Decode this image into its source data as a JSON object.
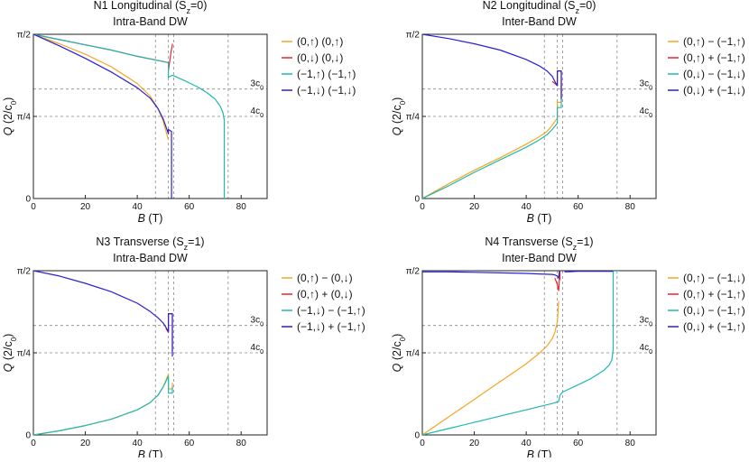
{
  "figure": {
    "panels_count": 4
  },
  "chart_data": [
    {
      "type": "line",
      "title": "N1 Longitudinal (S",
      "title_sub": "z",
      "title_tail": "=0)",
      "subtitle": "Intra-Band DW",
      "xlabel": "B (T)",
      "xlabel_main": "B",
      "xlabel_unit": " (T)",
      "ylabel_main": "Q",
      "ylabel_unit": " (2/c",
      "ylabel_sub": "0",
      "ylabel_tail": ")",
      "xlim": [
        0,
        90
      ],
      "ylim": [
        0,
        1.5708
      ],
      "xticks": [
        0,
        20,
        40,
        60,
        80
      ],
      "yticks": [
        {
          "v": 0,
          "label": "0"
        },
        {
          "v": 0.7854,
          "label": "π/4"
        },
        {
          "v": 1.5708,
          "label": "π/2"
        }
      ],
      "hlines": [
        {
          "y": 1.0472,
          "label": "3c",
          "sub": "0"
        },
        {
          "y": 0.7854,
          "label": "4c",
          "sub": "0"
        }
      ],
      "vlines": [
        47,
        52,
        54,
        75
      ],
      "legend_position": "right",
      "series": [
        {
          "name": "(0,↑) (0,↑)",
          "color": "#f5a623",
          "segments": [
            {
              "x": [
                0,
                10,
                20,
                30,
                40,
                45,
                48,
                50,
                52
              ],
              "y": [
                1.5708,
                1.48,
                1.38,
                1.26,
                1.1,
                0.98,
                0.86,
                0.74,
                0.56
              ]
            }
          ]
        },
        {
          "name": "(0,↓) (0,↓)",
          "color": "#e8262b",
          "segments": [
            {
              "x": [
                0,
                10,
                20,
                30,
                40,
                50,
                52,
                52,
                53,
                53.6
              ],
              "y": [
                1.5708,
                1.52,
                1.47,
                1.42,
                1.36,
                1.31,
                1.3,
                1.22,
                1.4,
                1.48
              ]
            }
          ]
        },
        {
          "name": "(−1,↑) (−1,↑)",
          "color": "#20b8b0",
          "segments": [
            {
              "x": [
                0,
                10,
                20,
                30,
                40,
                50,
                52,
                52,
                53.5
              ],
              "y": [
                1.5708,
                1.52,
                1.47,
                1.42,
                1.36,
                1.31,
                1.3,
                1.16,
                1.18
              ]
            },
            {
              "x": [
                53.5,
                58,
                63,
                67,
                70,
                72,
                73,
                73.5,
                73.5
              ],
              "y": [
                1.18,
                1.13,
                1.07,
                1.01,
                0.95,
                0.88,
                0.82,
                0.75,
                0
              ]
            }
          ]
        },
        {
          "name": "(−1,↓) (−1,↓)",
          "color": "#2a1fd6",
          "segments": [
            {
              "x": [
                0,
                10,
                20,
                30,
                40,
                45,
                48,
                50,
                52,
                52,
                53.2,
                53.2,
                53.5
              ],
              "y": [
                1.5708,
                1.46,
                1.34,
                1.21,
                1.06,
                0.96,
                0.86,
                0.76,
                0.62,
                0.66,
                0.64,
                0,
                0
              ]
            }
          ]
        }
      ]
    },
    {
      "type": "line",
      "title": "N2 Longitudinal (S",
      "title_sub": "z",
      "title_tail": "=0)",
      "subtitle": "Inter-Band DW",
      "xlabel_main": "B",
      "xlabel_unit": " (T)",
      "ylabel_main": "Q",
      "ylabel_unit": " (2/c",
      "ylabel_sub": "0",
      "ylabel_tail": ")",
      "xlim": [
        0,
        90
      ],
      "ylim": [
        0,
        1.5708
      ],
      "xticks": [
        0,
        20,
        40,
        60,
        80
      ],
      "yticks": [
        {
          "v": 0,
          "label": "0"
        },
        {
          "v": 0.7854,
          "label": "π/4"
        },
        {
          "v": 1.5708,
          "label": "π/2"
        }
      ],
      "hlines": [
        {
          "y": 1.0472,
          "label": "3c",
          "sub": "0"
        },
        {
          "y": 0.7854,
          "label": "4c",
          "sub": "0"
        }
      ],
      "vlines": [
        47,
        52,
        54,
        75
      ],
      "legend_position": "right",
      "series": [
        {
          "name": "(0,↑) − (−1,↑)",
          "color": "#f5a623",
          "segments": [
            {
              "x": [
                0,
                10,
                20,
                30,
                40,
                45,
                48,
                50,
                52,
                52,
                53.5,
                53.5
              ],
              "y": [
                0,
                0.14,
                0.27,
                0.39,
                0.52,
                0.59,
                0.64,
                0.7,
                0.77,
                0.92,
                0.92,
                1.1
              ]
            }
          ]
        },
        {
          "name": "(0,↑) + (−1,↑)",
          "color": "#e8262b",
          "segments": [
            {
              "x": [
                50,
                51,
                52,
                52,
                53.5,
                53.5
              ],
              "y": [
                1.12,
                1.1,
                1.08,
                1.22,
                1.22,
                1.0
              ]
            }
          ]
        },
        {
          "name": "(0,↓) − (−1,↓)",
          "color": "#20b8b0",
          "segments": [
            {
              "x": [
                0,
                10,
                20,
                30,
                40,
                45,
                48,
                50,
                52,
                52,
                53.5,
                53.5
              ],
              "y": [
                0,
                0.12,
                0.25,
                0.37,
                0.49,
                0.56,
                0.61,
                0.66,
                0.72,
                0.87,
                0.87,
                1.0
              ]
            }
          ]
        },
        {
          "name": "(0,↓) + (−1,↓)",
          "color": "#2a1fd6",
          "segments": [
            {
              "x": [
                0,
                10,
                20,
                30,
                40,
                45,
                48,
                50,
                51,
                52,
                52,
                53.5,
                53.5
              ],
              "y": [
                1.5708,
                1.53,
                1.48,
                1.42,
                1.33,
                1.27,
                1.22,
                1.17,
                1.12,
                1.08,
                1.22,
                1.22,
                0.95
              ]
            }
          ]
        }
      ]
    },
    {
      "type": "line",
      "title": "N3 Transverse (S",
      "title_sub": "z",
      "title_tail": "=1)",
      "subtitle": "Intra-Band DW",
      "xlabel_main": "B",
      "xlabel_unit": " (T)",
      "ylabel_main": "Q",
      "ylabel_unit": " (2/c",
      "ylabel_sub": "0",
      "ylabel_tail": ")",
      "xlim": [
        0,
        90
      ],
      "ylim": [
        0,
        1.5708
      ],
      "xticks": [
        0,
        20,
        40,
        60,
        80
      ],
      "yticks": [
        {
          "v": 0,
          "label": "0"
        },
        {
          "v": 0.7854,
          "label": "π/4"
        },
        {
          "v": 1.5708,
          "label": "π/2"
        }
      ],
      "hlines": [
        {
          "y": 1.0472,
          "label": "3c",
          "sub": "0"
        },
        {
          "y": 0.7854,
          "label": "4c",
          "sub": "0"
        }
      ],
      "vlines": [
        47,
        52,
        54,
        75
      ],
      "legend_position": "right",
      "series": [
        {
          "name": "(0,↑) − (0,↓)",
          "color": "#f5a623",
          "segments": [
            {
              "x": [
                0,
                10,
                20,
                30,
                40,
                45,
                48,
                50,
                52,
                52,
                53.5,
                53.5
              ],
              "y": [
                0,
                0.04,
                0.09,
                0.15,
                0.24,
                0.31,
                0.38,
                0.46,
                0.58,
                0.44,
                0.44,
                0.5
              ]
            }
          ]
        },
        {
          "name": "(0,↑) + (0,↓)",
          "color": "#e8262b",
          "segments": [
            {
              "x": [
                51,
                52,
                52,
                53.5,
                53.5
              ],
              "y": [
                1.02,
                0.98,
                1.16,
                1.16,
                0.8
              ]
            }
          ]
        },
        {
          "name": "(−1,↓) − (−1,↑)",
          "color": "#20b8b0",
          "segments": [
            {
              "x": [
                0,
                10,
                20,
                30,
                40,
                45,
                48,
                50,
                52,
                52,
                53.5,
                53.5
              ],
              "y": [
                0,
                0.04,
                0.09,
                0.15,
                0.24,
                0.31,
                0.38,
                0.46,
                0.56,
                0.4,
                0.4,
                0.46
              ]
            }
          ]
        },
        {
          "name": "(−1,↓) + (−1,↑)",
          "color": "#2a1fd6",
          "segments": [
            {
              "x": [
                0,
                10,
                20,
                30,
                40,
                45,
                48,
                50,
                51,
                52,
                52,
                53.5,
                53.5
              ],
              "y": [
                1.5708,
                1.52,
                1.45,
                1.37,
                1.26,
                1.18,
                1.12,
                1.07,
                1.03,
                0.99,
                1.16,
                1.16,
                0.75
              ]
            }
          ]
        }
      ]
    },
    {
      "type": "line",
      "title": "N4 Transverse (S",
      "title_sub": "z",
      "title_tail": "=1)",
      "subtitle": "Inter-Band DW",
      "xlabel_main": "B",
      "xlabel_unit": " (T)",
      "ylabel_main": "Q",
      "ylabel_unit": " (2/c",
      "ylabel_sub": "0",
      "ylabel_tail": ")",
      "xlim": [
        0,
        90
      ],
      "ylim": [
        0,
        1.5708
      ],
      "xticks": [
        0,
        20,
        40,
        60,
        80
      ],
      "yticks": [
        {
          "v": 0,
          "label": "0"
        },
        {
          "v": 0.7854,
          "label": "π/4"
        },
        {
          "v": 1.5708,
          "label": "π/2"
        }
      ],
      "hlines": [
        {
          "y": 1.0472,
          "label": "3c",
          "sub": "0"
        },
        {
          "y": 0.7854,
          "label": "4c",
          "sub": "0"
        }
      ],
      "vlines": [
        47,
        52,
        54,
        75
      ],
      "legend_position": "right",
      "series": [
        {
          "name": "(0,↑) − (−1,↓)",
          "color": "#f5a623",
          "segments": [
            {
              "x": [
                0,
                10,
                20,
                30,
                40,
                45,
                48,
                50,
                51,
                52,
                52.5
              ],
              "y": [
                0,
                0.17,
                0.34,
                0.51,
                0.68,
                0.78,
                0.85,
                0.92,
                0.98,
                1.08,
                1.28
              ]
            }
          ]
        },
        {
          "name": "(0,↑) + (−1,↑)",
          "color": "#e8262b",
          "segments": [
            {
              "x": [
                51,
                52,
                52.5,
                53,
                53
              ],
              "y": [
                1.5,
                1.44,
                1.38,
                1.58,
                1.48
              ]
            }
          ]
        },
        {
          "name": "(0,↓) − (−1,↑)",
          "color": "#20b8b0",
          "segments": [
            {
              "x": [
                0,
                10,
                20,
                30,
                40,
                50,
                52.5,
                53,
                54,
                60,
                65,
                70,
                72,
                73,
                73.5,
                73.5,
                76
              ],
              "y": [
                0,
                0.06,
                0.12,
                0.18,
                0.24,
                0.3,
                0.32,
                0.38,
                0.41,
                0.48,
                0.54,
                0.62,
                0.67,
                0.72,
                0.82,
                1.57,
                1.57
              ]
            }
          ]
        },
        {
          "name": "(0,↓) + (−1,↑)",
          "color": "#2a1fd6",
          "segments": [
            {
              "x": [
                0,
                10,
                20,
                30,
                40,
                45,
                50,
                51,
                52,
                52.5,
                53,
                53,
                54,
                55,
                60,
                65,
                70,
                73.5
              ],
              "y": [
                1.56,
                1.56,
                1.555,
                1.55,
                1.545,
                1.54,
                1.535,
                1.53,
                1.52,
                1.5,
                1.62,
                1.62,
                1.62,
                1.56,
                1.565,
                1.565,
                1.565,
                1.565
              ]
            }
          ]
        }
      ]
    }
  ]
}
